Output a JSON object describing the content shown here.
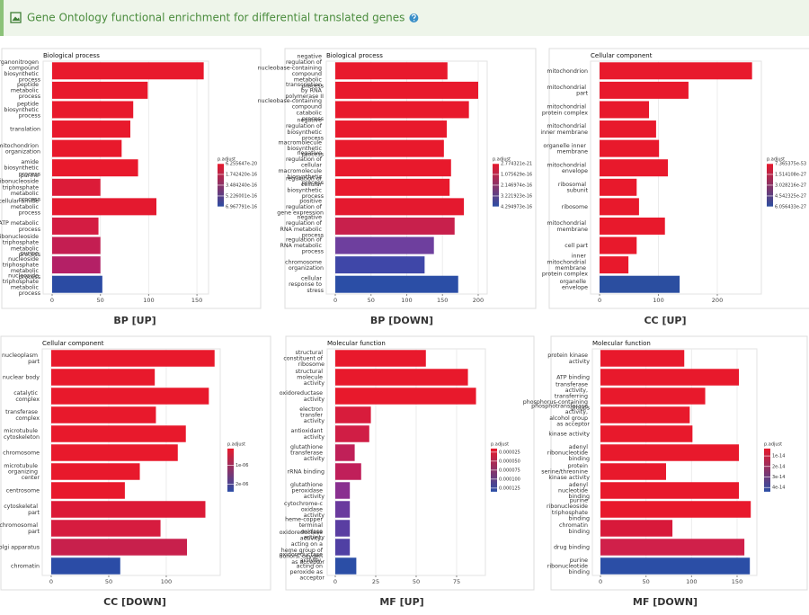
{
  "header": {
    "title": "Gene Ontology functional enrichment for differential translated genes"
  },
  "chart_data": [
    {
      "type": "bar",
      "orientation": "horizontal",
      "title": "Biological process",
      "caption": "BP [UP]",
      "categories": [
        "organonitrogen compound biosynthetic process",
        "peptide metabolic process",
        "peptide biosynthetic process",
        "translation",
        "mitochondrion organization",
        "amide biosynthetic process",
        "purine ribonucleoside triphosphate metabolic process",
        "cellular amide metabolic process",
        "ATP metabolic process",
        "ribonucleoside triphosphate metabolic process",
        "purine nucleoside triphosphate metabolic process",
        "nucleoside triphosphate metabolic process"
      ],
      "values": [
        157,
        99,
        84,
        81,
        72,
        89,
        50,
        108,
        48,
        50,
        50,
        52
      ],
      "colors": [
        "#e8192c",
        "#e8192c",
        "#e8192c",
        "#e8192c",
        "#e8192c",
        "#e8192c",
        "#dc1b38",
        "#e4192f",
        "#d41c42",
        "#c41e52",
        "#b42066",
        "#2b4ba3"
      ],
      "xlim": [
        -9.3,
        162
      ],
      "xticks": [
        0,
        50,
        100,
        150
      ],
      "grid": true,
      "legend": {
        "title": "p.adjust",
        "colors": [
          "#e8192c",
          "#2b4ba3"
        ],
        "lim": [
          6.255647e-20,
          6.967791e-16
        ],
        "ticks": [
          6.255647e-20,
          {
            "value": 1.74242e-16,
            "label": "1.742420e-16"
          },
          {
            "value": 3.48424e-16,
            "label": "3.484240e-16"
          },
          5.226001e-16,
          6.967791e-16
        ]
      }
    },
    {
      "type": "bar",
      "orientation": "horizontal",
      "title": "Biological process",
      "caption": "BP [DOWN]",
      "categories": [
        "negative regulation of nucleobase-containing compound metabolic process",
        "transcription by RNA polymerase II",
        "nucleobase-containing compound catabolic process",
        "negative regulation of biosynthetic process",
        "macromolecule biosynthetic process",
        "negative regulation of cellular macromolecule biosynthetic process",
        "regulation of cellular biosynthetic process",
        "positive regulation of gene expression",
        "negative regulation of RNA metabolic process",
        "regulation of RNA metabolic process",
        "chromosome organization",
        "cellular response to stress"
      ],
      "values": [
        157,
        200,
        187,
        156,
        152,
        162,
        160,
        180,
        167,
        138,
        125,
        172
      ],
      "colors": [
        "#e8192c",
        "#e8192c",
        "#e8192c",
        "#e8192c",
        "#e8192c",
        "#e8192c",
        "#e8192c",
        "#e4192f",
        "#c8204c",
        "#6e3f9e",
        "#3f47a8",
        "#2b4ea6"
      ],
      "xlim": [
        -12.6,
        212.6
      ],
      "xticks": [
        0,
        50,
        100,
        150,
        200
      ],
      "grid": true,
      "legend": {
        "title": "p.adjust",
        "colors": [
          "#e8192c",
          "#2b4ea6"
        ],
        "lim": [
          2.774321e-21,
          4.294973e-16
        ],
        "ticks": [
          2.774321e-21,
          1.075629e-16,
          2.146974e-16,
          3.221923e-16,
          4.294973e-16
        ]
      }
    },
    {
      "type": "bar",
      "orientation": "horizontal",
      "title": "Cellular component",
      "caption": "CC [UP]",
      "categories": [
        "mitochondrion",
        "mitochondrial part",
        "mitochondrial protein complex",
        "mitochondrial inner membrane",
        "organelle inner membrane",
        "mitochondrial envelope",
        "ribosomal subunit",
        "ribosome",
        "mitochondrial membrane",
        "cell part",
        "inner mitochondrial membrane protein complex",
        "organelle envelope"
      ],
      "values": [
        259,
        151,
        84,
        96,
        101,
        116,
        63,
        67,
        111,
        63,
        49,
        136
      ],
      "colors": [
        "#e8192c",
        "#e8192c",
        "#e8192c",
        "#e8192c",
        "#e8192c",
        "#e8192c",
        "#e8192c",
        "#e8192c",
        "#e8192c",
        "#e8192c",
        "#e8192c",
        "#2b4ea0"
      ],
      "xlim": [
        -15.3,
        274.8
      ],
      "xticks": [
        0,
        100,
        200
      ],
      "grid": true,
      "legend": {
        "title": "p.adjust",
        "colors": [
          "#e8192c",
          "#2b4ea0"
        ],
        "lim": [
          7.365375e-53,
          6.056433e-27
        ],
        "ticks": [
          7.365375e-53,
          1.514108e-27,
          3.028216e-27,
          4.542325e-27,
          6.056433e-27
        ]
      }
    },
    {
      "type": "bar",
      "orientation": "horizontal",
      "title": "Cellular component",
      "caption": "CC [DOWN]",
      "categories": [
        "nucleoplasm part",
        "nuclear body",
        "catalytic complex",
        "transferase complex",
        "microtubule cytoskeleton",
        "chromosome",
        "microtubule organizing center",
        "centrosome",
        "cytoskeletal part",
        "chromosomal part",
        "Golgi apparatus",
        "chromatin"
      ],
      "values": [
        142,
        90,
        137,
        91,
        117,
        110,
        77,
        64,
        134,
        95,
        118,
        60
      ],
      "colors": [
        "#e8192c",
        "#e8192c",
        "#e8192c",
        "#e8192c",
        "#e8192c",
        "#e8192c",
        "#e8192c",
        "#e8192c",
        "#dc1a37",
        "#d61c3f",
        "#c8204c",
        "#2b4ca6"
      ],
      "xlim": [
        -7.8,
        146.9
      ],
      "xticks": [
        0,
        50,
        100
      ],
      "grid": true,
      "legend": {
        "title": "p.adjust",
        "colors": [
          "#e8192c",
          "#2b4ca6"
        ],
        "lim": [
          1e-07,
          2.4e-06
        ],
        "ticks": [
          {
            "value": 1e-06,
            "label": "1e-06"
          },
          {
            "value": 2e-06,
            "label": "2e-06"
          }
        ]
      }
    },
    {
      "type": "bar",
      "orientation": "horizontal",
      "title": "Molecular function",
      "caption": "MF [UP]",
      "categories": [
        "structural constituent of ribosome",
        "structural molecule activity",
        "oxidoreductase activity",
        "electron transfer activity",
        "antioxidant activity",
        "glutathione transferase activity",
        "rRNA binding",
        "glutathione peroxidase activity",
        "cytochrome-c oxidase activity",
        "heme-copper terminal oxidase activity",
        "oxidoreductase activity, acting on a heme group of donors, oxygen as acceptor",
        "oxidoreductase activity, acting on peroxide as acceptor"
      ],
      "values": [
        56,
        82,
        87,
        22,
        21,
        12,
        16,
        9,
        9,
        9,
        9,
        13
      ],
      "colors": [
        "#e8192c",
        "#e8192c",
        "#e8192c",
        "#d81c3c",
        "#d01e45",
        "#c02058",
        "#c01f5a",
        "#8a3090",
        "#6a3a9e",
        "#5a3ea2",
        "#5040a4",
        "#2b4ea6"
      ],
      "xlim": [
        -5,
        92.8
      ],
      "xticks": [
        0,
        25,
        50,
        75
      ],
      "grid": true,
      "legend": {
        "title": "p.adjust",
        "colors": [
          "#e8192c",
          "#2b4ea6"
        ],
        "lim": [
          1.5e-05,
          0.000135
        ],
        "ticks": [
          2.5e-05,
          {
            "value": 5e-05,
            "label": "0.000050"
          },
          7.5e-05,
          {
            "value": 0.0001,
            "label": "0.000100"
          },
          0.000125
        ]
      }
    },
    {
      "type": "bar",
      "orientation": "horizontal",
      "title": "Molecular function",
      "caption": "MF [DOWN]",
      "categories": [
        "protein kinase activity",
        "ATP binding",
        "transferase activity, transferring phosphorus-containing groups",
        "phosphotransferase activity, alcohol group as acceptor",
        "kinase activity",
        "adenyl ribonucleotide binding",
        "protein serine/threonine kinase activity",
        "adenyl nucleotide binding",
        "purine ribonucleoside triphosphate binding",
        "chromatin binding",
        "drug binding",
        "purine ribonucleotide binding"
      ],
      "values": [
        92,
        152,
        115,
        98,
        101,
        152,
        72,
        152,
        165,
        79,
        158,
        164
      ],
      "colors": [
        "#e8192c",
        "#e8192c",
        "#e8192c",
        "#e8192c",
        "#e8192c",
        "#e8192c",
        "#e8192c",
        "#e8192c",
        "#e8192c",
        "#d8193a",
        "#d0204a",
        "#2b4ea6"
      ],
      "xlim": [
        -8.9,
        171.7
      ],
      "xticks": [
        0,
        50,
        100,
        150
      ],
      "grid": true,
      "legend": {
        "title": "p.adjust",
        "colors": [
          "#e8192c",
          "#2b4ea6"
        ],
        "lim": [
          3e-15,
          4.4e-14
        ],
        "ticks": [
          1e-14,
          2e-14,
          3e-14,
          4e-14
        ]
      }
    }
  ]
}
